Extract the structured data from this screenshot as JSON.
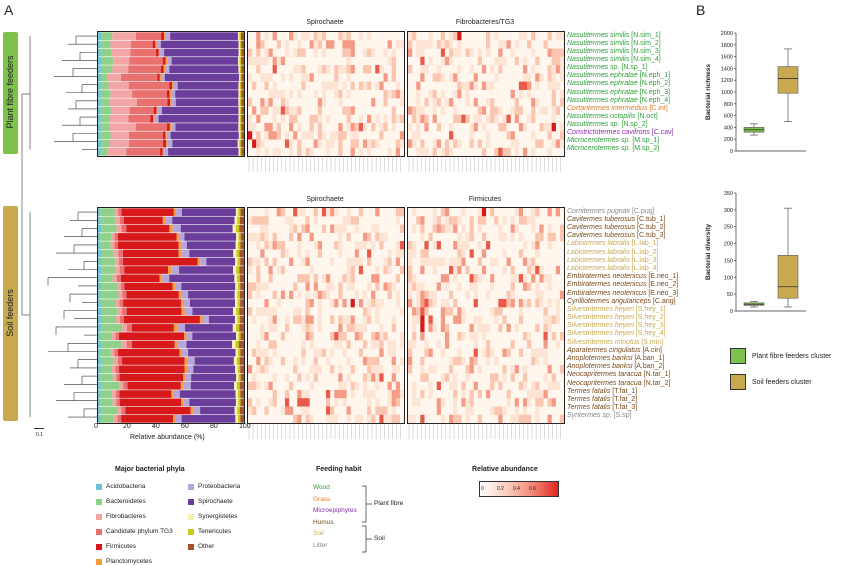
{
  "panels": {
    "a": "A",
    "b": "B"
  },
  "groups": {
    "plant": {
      "label": "Plant fibre feeders",
      "color": "#7dc24b"
    },
    "soil": {
      "label": "Soil feeders",
      "color": "#c9a94f"
    }
  },
  "heatmap_titles": {
    "top_left": "Spirochaete",
    "top_right": "Fibrobacteres/TG3",
    "bottom_left": "Spirochaete",
    "bottom_right": "Firmicutes"
  },
  "plant_rows": [
    {
      "name": "Nasutitermes similis",
      "code": "[N.sim_1]",
      "color": "#2e9e3a"
    },
    {
      "name": "Nasutitermes similis",
      "code": "[N.sim_2]",
      "color": "#2e9e3a"
    },
    {
      "name": "Nasutitermes similis",
      "code": "[N.sim_3]",
      "color": "#2e9e3a"
    },
    {
      "name": "Nasutitermes similis",
      "code": "[N.sim_4]",
      "color": "#2e9e3a"
    },
    {
      "name": "Nasutitermes sp.",
      "code": "[N.sp_1]",
      "color": "#2e9e3a"
    },
    {
      "name": "Nasutitermes ephratae",
      "code": "[N.eph_1]",
      "color": "#2e9e3a"
    },
    {
      "name": "Nasutitermes ephratae",
      "code": "[N.eph_2]",
      "color": "#2e9e3a"
    },
    {
      "name": "Nasutitermes ephratae",
      "code": "[N.eph_3]",
      "color": "#2e9e3a"
    },
    {
      "name": "Nasutitermes ephratae",
      "code": "[N.eph_4]",
      "color": "#2e9e3a"
    },
    {
      "name": "Cortaritermes intermedius",
      "code": "[C.int]",
      "color": "#e07b2a"
    },
    {
      "name": "Nasutitermes octopilis",
      "code": "[N.oct]",
      "color": "#2e9e3a"
    },
    {
      "name": "Nasutitermes sp.",
      "code": "[N.sp_2]",
      "color": "#2e9e3a"
    },
    {
      "name": "Constrictotermes cavifrons",
      "code": "[C.cav]",
      "color": "#8a2fa8"
    },
    {
      "name": "Microcerotermes sp.",
      "code": "[M.sp_1]",
      "color": "#2e9e3a"
    },
    {
      "name": "Microcerotermes sp.",
      "code": "[M.sp_2]",
      "color": "#2e9e3a"
    }
  ],
  "soil_rows": [
    {
      "name": "Cornitermes pugnax",
      "code": "[C.pug]",
      "color": "#888888"
    },
    {
      "name": "Cavitermes tuberosus",
      "code": "[C.tub_1]",
      "color": "#7a4a1c"
    },
    {
      "name": "Cavitermes tuberosus",
      "code": "[C.tub_2]",
      "color": "#7a4a1c"
    },
    {
      "name": "Cavitermes tuberosus",
      "code": "[C.tub_3]",
      "color": "#7a4a1c"
    },
    {
      "name": "Labiotermes labralis",
      "code": "[L.lab_1]",
      "color": "#c9a94f"
    },
    {
      "name": "Labiotermes labralis",
      "code": "[L.lab_2]",
      "color": "#c9a94f"
    },
    {
      "name": "Labiotermes labralis",
      "code": "[L.lab_3]",
      "color": "#c9a94f"
    },
    {
      "name": "Labiotermes labralis",
      "code": "[L.lab_4]",
      "color": "#c9a94f"
    },
    {
      "name": "Embiratermes neotenicus",
      "code": "[E.neo_1]",
      "color": "#7a4a1c"
    },
    {
      "name": "Embiratermes neotenicus",
      "code": "[E.neo_2]",
      "color": "#7a4a1c"
    },
    {
      "name": "Embiratermes neotenicus",
      "code": "[E.neo_3]",
      "color": "#7a4a1c"
    },
    {
      "name": "Cyrilliotermes angulariceps",
      "code": "[C.ang]",
      "color": "#7a4a1c"
    },
    {
      "name": "Silvestritermes heyeri",
      "code": "[S.hey_1]",
      "color": "#c9a94f"
    },
    {
      "name": "Silvestritermes heyeri",
      "code": "[S.hey_2]",
      "color": "#c9a94f"
    },
    {
      "name": "Silvestritermes heyeri",
      "code": "[S.hey_3]",
      "color": "#c9a94f"
    },
    {
      "name": "Silvestritermes heyeri",
      "code": "[S.hey_4]",
      "color": "#c9a94f"
    },
    {
      "name": "Silvestritermes minutus",
      "code": "[S.min]",
      "color": "#c9a94f"
    },
    {
      "name": "Aparatermes cingulatus",
      "code": "[A.cin]",
      "color": "#7a4a1c"
    },
    {
      "name": "Anoplotermes banksi",
      "code": "[A.ban_1]",
      "color": "#7a4a1c"
    },
    {
      "name": "Anoplotermes banksi",
      "code": "[A.ban_2]",
      "color": "#7a4a1c"
    },
    {
      "name": "Neocapritermes taracua",
      "code": "[N.tar_1]",
      "color": "#7a4a1c"
    },
    {
      "name": "Neocapritermes taracua",
      "code": "[N.tar_2]",
      "color": "#7a4a1c"
    },
    {
      "name": "Termes fatalis",
      "code": "[T.fat_1]",
      "color": "#7a4a1c"
    },
    {
      "name": "Termes fatalis",
      "code": "[T.fat_2]",
      "color": "#7a4a1c"
    },
    {
      "name": "Termes fatalis",
      "code": "[T.fat_3]",
      "color": "#7a4a1c"
    },
    {
      "name": "Syntermes sp.",
      "code": "[S.sp]",
      "color": "#888888"
    }
  ],
  "abundance_axis": {
    "label": "Relative abundance (%)",
    "ticks": [
      "0",
      "20",
      "40",
      "60",
      "80",
      "100"
    ],
    "scale_bar": "0.1"
  },
  "phyla": {
    "title": "Major bacterial phyla",
    "items": [
      {
        "name": "Acidobacteria",
        "color": "#6cc3d5"
      },
      {
        "name": "Bacteroidetes",
        "color": "#8fd18a"
      },
      {
        "name": "Fibrobacteres",
        "color": "#f2a5a5"
      },
      {
        "name": "Candidate phylum TG3",
        "color": "#e8706f"
      },
      {
        "name": "Firmicutes",
        "color": "#d7191c"
      },
      {
        "name": "Planctomycetes",
        "color": "#f39c3c"
      },
      {
        "name": "Proteobacteria",
        "color": "#b7a6d9"
      },
      {
        "name": "Spirochaete",
        "color": "#6a3d9a"
      },
      {
        "name": "Synergistetes",
        "color": "#f7f2b0"
      },
      {
        "name": "Tenericutes",
        "color": "#c8c81e"
      },
      {
        "name": "Other",
        "color": "#a0522d"
      }
    ]
  },
  "feeding": {
    "title": "Feeding habit",
    "items": [
      {
        "name": "Wood",
        "color": "#2e9e3a"
      },
      {
        "name": "Grass",
        "color": "#e07b2a"
      },
      {
        "name": "Microepiphytes",
        "color": "#8a2fa8"
      },
      {
        "name": "Humus",
        "color": "#7a4a1c"
      },
      {
        "name": "Soil",
        "color": "#c9a94f"
      },
      {
        "name": "Litter",
        "color": "#888888"
      }
    ],
    "plant_fibre": "Plant fibre",
    "soil": "Soil"
  },
  "rel_abund": {
    "title": "Relative abundance",
    "ticks": [
      "0",
      "0.2",
      "0.4",
      "0.6"
    ]
  },
  "boxplots": {
    "richness": {
      "ylabel": "Bacterial richness",
      "ticks": [
        "0",
        "200",
        "400",
        "600",
        "800",
        "1000",
        "1200",
        "1400",
        "1600",
        "1800",
        "2000"
      ],
      "ylim": [
        0,
        2000
      ]
    },
    "diversity": {
      "ylabel": "Bacterial diversity",
      "ticks": [
        "0",
        "50",
        "100",
        "150",
        "200",
        "250",
        "300",
        "350"
      ],
      "ylim": [
        0,
        350
      ]
    }
  },
  "chart_data": [
    {
      "type": "box",
      "ylabel": "Bacterial richness",
      "ylim": [
        0,
        2000
      ],
      "series": [
        {
          "name": "Plant fibre feeders cluster",
          "color": "#7dc24b",
          "min": 270,
          "q1": 320,
          "median": 360,
          "q3": 400,
          "max": 460
        },
        {
          "name": "Soil feeders cluster",
          "color": "#c9a94f",
          "min": 500,
          "q1": 980,
          "median": 1230,
          "q3": 1430,
          "max": 1730
        }
      ]
    },
    {
      "type": "box",
      "ylabel": "Bacterial diversity",
      "ylim": [
        0,
        350
      ],
      "series": [
        {
          "name": "Plant fibre feeders cluster",
          "color": "#7dc24b",
          "min": 12,
          "q1": 17,
          "median": 20,
          "q3": 24,
          "max": 28
        },
        {
          "name": "Soil feeders cluster",
          "color": "#c9a94f",
          "min": 12,
          "q1": 38,
          "median": 72,
          "q3": 165,
          "max": 305
        }
      ]
    }
  ],
  "box_legend": [
    "Plant fibre feeders cluster",
    "Soil feeders cluster"
  ]
}
